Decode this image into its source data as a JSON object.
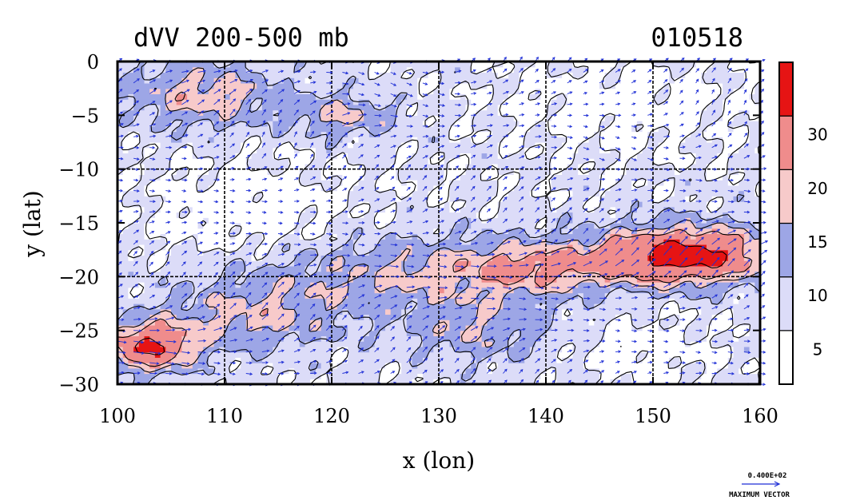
{
  "chart_data": {
    "type": "heatmap",
    "subtype": "filled contour map with wind vectors",
    "title_left": "dVV 200-500 mb",
    "title_right": "010518",
    "xlabel": "x (lon)",
    "ylabel": "y (lat)",
    "xlim": [
      100,
      160
    ],
    "ylim": [
      -30,
      0
    ],
    "x_ticks": [
      100,
      110,
      120,
      130,
      140,
      150,
      160
    ],
    "y_ticks": [
      0,
      -5,
      -10,
      -15,
      -20,
      -25,
      -30
    ],
    "x_tick_labels": [
      "100",
      "110",
      "120",
      "130",
      "140",
      "150",
      "160"
    ],
    "y_tick_labels": [
      "0",
      "−5",
      "−10",
      "−15",
      "−20",
      "−25",
      "−30"
    ],
    "grid_x": [
      110,
      120,
      130,
      140,
      150
    ],
    "grid_y": [
      -10,
      -20
    ],
    "colorbar": {
      "levels": [
        0,
        5,
        10,
        15,
        20,
        30,
        40
      ],
      "labels": [
        "5",
        "10",
        "15",
        "20",
        "30"
      ],
      "colors": [
        "#ffffff",
        "#dcdcf8",
        "#9da6e6",
        "#f7caca",
        "#ef8c8c",
        "#e61414"
      ]
    },
    "legend": {
      "value_label": "0.400E+02",
      "caption": "MAXIMUM VECTOR",
      "max_vector": 40
    },
    "vector_color": "#1f2fd6"
  }
}
